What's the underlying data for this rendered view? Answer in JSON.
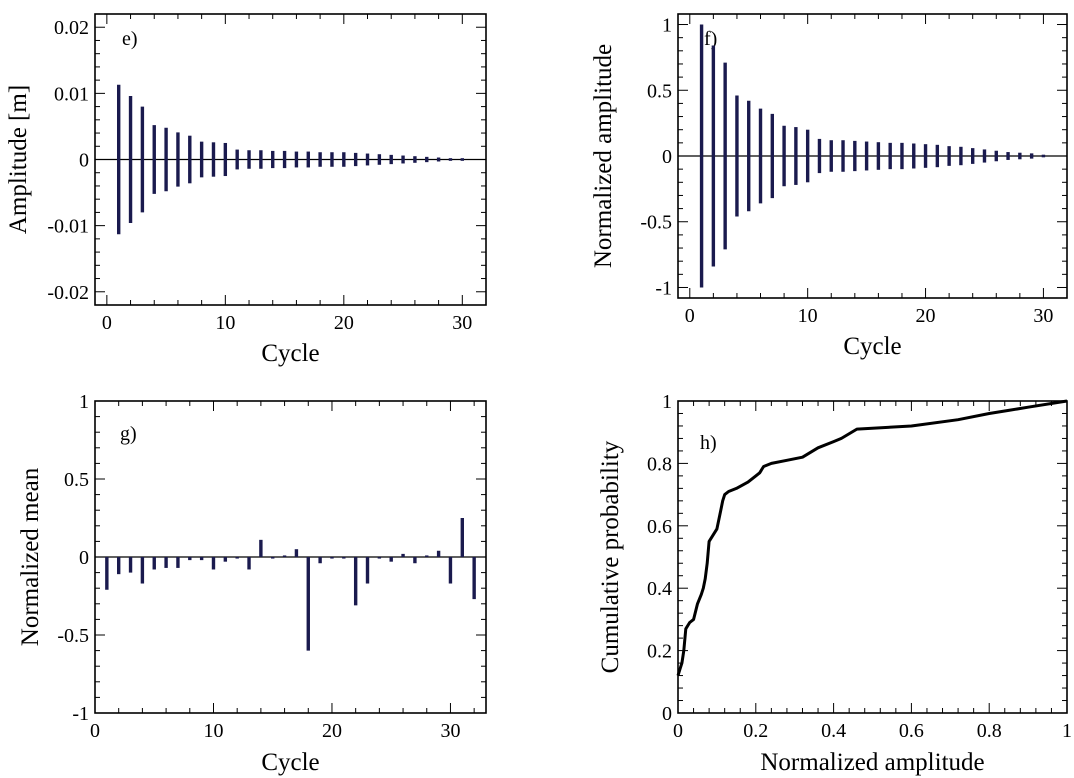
{
  "chart_data": [
    {
      "id": "e",
      "panel_label": "e)",
      "type": "bar",
      "xlabel": "Cycle",
      "ylabel": "Amplitude [m]",
      "xlim": [
        -1,
        32
      ],
      "ylim": [
        -0.022,
        0.022
      ],
      "xticks": [
        0,
        10,
        20,
        30
      ],
      "xtick_labels": [
        "0",
        "10",
        "20",
        "30"
      ],
      "yticks": [
        0.02,
        0.01,
        0,
        -0.01,
        -0.02
      ],
      "ytick_labels": [
        "0.02",
        "0.01",
        "0",
        "-0.01",
        "-0.02"
      ],
      "symmetric_bars": true,
      "x": [
        1,
        2,
        3,
        4,
        5,
        6,
        7,
        8,
        9,
        10,
        11,
        12,
        13,
        14,
        15,
        16,
        17,
        18,
        19,
        20,
        21,
        22,
        23,
        24,
        25,
        26,
        27,
        28,
        29,
        30
      ],
      "values": [
        0.0113,
        0.0096,
        0.008,
        0.0052,
        0.0048,
        0.0041,
        0.0036,
        0.0027,
        0.0026,
        0.0025,
        0.0015,
        0.0014,
        0.0014,
        0.0013,
        0.0013,
        0.0012,
        0.0012,
        0.0011,
        0.0011,
        0.0011,
        0.001,
        0.0009,
        0.0008,
        0.0007,
        0.0006,
        0.0005,
        0.0004,
        0.0003,
        0.0002,
        0.0002
      ]
    },
    {
      "id": "f",
      "panel_label": "f)",
      "type": "bar",
      "xlabel": "Cycle",
      "ylabel": "Normalized amplitude",
      "xlim": [
        -1,
        32
      ],
      "ylim": [
        -1.08,
        1.08
      ],
      "xticks": [
        0,
        10,
        20,
        30
      ],
      "xtick_labels": [
        "0",
        "10",
        "20",
        "30"
      ],
      "yticks": [
        1,
        0.5,
        0,
        -0.5,
        -1
      ],
      "ytick_labels": [
        "1",
        "0.5",
        "0",
        "-0.5",
        "-1"
      ],
      "symmetric_bars": true,
      "x": [
        1,
        2,
        3,
        4,
        5,
        6,
        7,
        8,
        9,
        10,
        11,
        12,
        13,
        14,
        15,
        16,
        17,
        18,
        19,
        20,
        21,
        22,
        23,
        24,
        25,
        26,
        27,
        28,
        29,
        30
      ],
      "values": [
        1.0,
        0.84,
        0.71,
        0.46,
        0.42,
        0.36,
        0.32,
        0.23,
        0.22,
        0.2,
        0.13,
        0.12,
        0.12,
        0.115,
        0.11,
        0.105,
        0.1,
        0.1,
        0.095,
        0.09,
        0.085,
        0.075,
        0.07,
        0.06,
        0.05,
        0.04,
        0.03,
        0.025,
        0.02,
        0.01
      ]
    },
    {
      "id": "g",
      "panel_label": "g)",
      "type": "bar",
      "xlabel": "Cycle",
      "ylabel": "Normalized mean",
      "xlim": [
        0,
        33
      ],
      "ylim": [
        -1,
        1
      ],
      "xticks": [
        0,
        10,
        20,
        30
      ],
      "xtick_labels": [
        "0",
        "10",
        "20",
        "30"
      ],
      "yticks": [
        1,
        0.5,
        0,
        -0.5,
        -1
      ],
      "ytick_labels": [
        "1",
        "0.5",
        "0",
        "-0.5",
        "-1"
      ],
      "symmetric_bars": false,
      "x": [
        1,
        2,
        3,
        4,
        5,
        6,
        7,
        8,
        9,
        10,
        11,
        12,
        13,
        14,
        15,
        16,
        17,
        18,
        19,
        20,
        21,
        22,
        23,
        24,
        25,
        26,
        27,
        28,
        29,
        30,
        31,
        32
      ],
      "values": [
        -0.21,
        -0.11,
        -0.1,
        -0.17,
        -0.08,
        -0.07,
        -0.07,
        -0.02,
        -0.02,
        -0.08,
        -0.03,
        -0.01,
        -0.08,
        0.11,
        -0.01,
        0.01,
        0.05,
        -0.6,
        -0.04,
        -0.01,
        -0.01,
        -0.31,
        -0.17,
        -0.01,
        -0.03,
        0.02,
        -0.04,
        0.01,
        0.04,
        -0.17,
        0.25,
        -0.27
      ]
    },
    {
      "id": "h",
      "panel_label": "h)",
      "type": "line",
      "xlabel": "Normalized amplitude",
      "ylabel": "Cumulative probability",
      "xlim": [
        0,
        1
      ],
      "ylim": [
        0,
        1
      ],
      "xticks": [
        0,
        0.2,
        0.4,
        0.6,
        0.8,
        1
      ],
      "xtick_labels": [
        "0",
        "0.2",
        "0.4",
        "0.6",
        "0.8",
        "1"
      ],
      "yticks": [
        1,
        0.8,
        0.6,
        0.4,
        0.2,
        0
      ],
      "ytick_labels": [
        "1",
        "0.8",
        "0.6",
        "0.4",
        "0.2",
        "0"
      ],
      "x": [
        0.0,
        0.005,
        0.01,
        0.015,
        0.02,
        0.03,
        0.04,
        0.05,
        0.06,
        0.065,
        0.07,
        0.075,
        0.08,
        0.09,
        0.1,
        0.11,
        0.115,
        0.12,
        0.13,
        0.15,
        0.18,
        0.2,
        0.21,
        0.22,
        0.24,
        0.28,
        0.32,
        0.36,
        0.4,
        0.42,
        0.46,
        0.6,
        0.72,
        0.8,
        0.85,
        0.9,
        1.0
      ],
      "y": [
        0.12,
        0.14,
        0.16,
        0.2,
        0.27,
        0.29,
        0.3,
        0.35,
        0.38,
        0.4,
        0.43,
        0.48,
        0.55,
        0.57,
        0.59,
        0.65,
        0.68,
        0.7,
        0.71,
        0.72,
        0.74,
        0.76,
        0.77,
        0.79,
        0.8,
        0.81,
        0.82,
        0.85,
        0.87,
        0.88,
        0.91,
        0.92,
        0.94,
        0.96,
        0.97,
        0.98,
        1.0
      ]
    }
  ]
}
